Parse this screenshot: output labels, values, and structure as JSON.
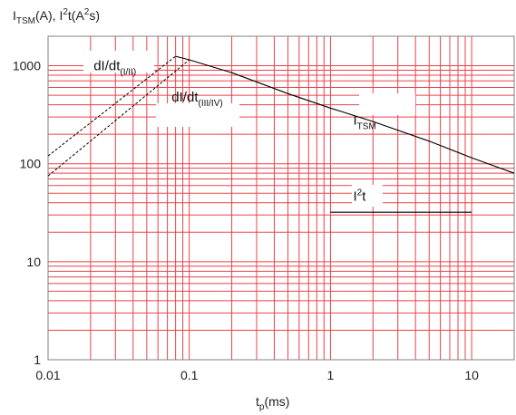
{
  "chart_data": {
    "type": "line",
    "x_scale": "log",
    "y_scale": "log",
    "xlim": [
      0.01,
      20
    ],
    "ylim": [
      1,
      2000
    ],
    "grid": true,
    "colors": {
      "grid": "#e8434b",
      "axis": "#808080",
      "line": "#000000",
      "background": "#ffffff"
    },
    "x_ticks": [
      {
        "value": 0.01,
        "label": "0.01"
      },
      {
        "value": 0.1,
        "label": "0.1"
      },
      {
        "value": 1,
        "label": "1"
      },
      {
        "value": 10,
        "label": "10"
      }
    ],
    "y_ticks": [
      {
        "value": 1,
        "label": "1"
      },
      {
        "value": 10,
        "label": "10"
      },
      {
        "value": 100,
        "label": "100"
      },
      {
        "value": 1000,
        "label": "1000"
      }
    ],
    "ylabel": {
      "main1": "I",
      "sub1": "TSM",
      "main2": "(A), I",
      "sup": "2",
      "main3": "t(A",
      "sup2": "2",
      "main4": "s)"
    },
    "xlabel": {
      "main": "t",
      "sub": "p",
      "rest": "(ms)"
    },
    "series": [
      {
        "name": "I_TSM",
        "style": "solid",
        "x": [
          0.08,
          0.1,
          0.2,
          0.5,
          1,
          2,
          5,
          10,
          20
        ],
        "y": [
          1250,
          1150,
          850,
          520,
          370,
          270,
          170,
          115,
          80
        ]
      },
      {
        "name": "I2t",
        "style": "solid",
        "x": [
          1,
          10
        ],
        "y": [
          32,
          32
        ]
      },
      {
        "name": "dI/dt (I/II)",
        "style": "dashed",
        "x": [
          0.01,
          0.08
        ],
        "y": [
          120,
          1250
        ]
      },
      {
        "name": "dI/dt (III/IV)",
        "style": "dashed",
        "x": [
          0.01,
          0.1
        ],
        "y": [
          75,
          1150
        ]
      }
    ],
    "annotations": [
      {
        "id": "didt1",
        "main": "dI/dt",
        "sub": "(I/II)",
        "x": 0.021,
        "y": 900
      },
      {
        "id": "didt2",
        "main": "dI/dt",
        "sub": "(III/IV)",
        "x": 0.075,
        "y": 430
      },
      {
        "id": "itsm",
        "main": "I",
        "sub": "TSM",
        "x": 1.45,
        "y": 250
      },
      {
        "id": "i2t",
        "main": "I",
        "sup": "2",
        "rest": "t",
        "x": 1.45,
        "y": 42
      }
    ]
  }
}
